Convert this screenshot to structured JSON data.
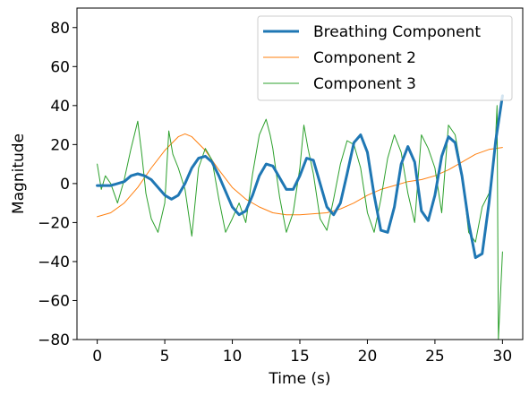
{
  "chart_data": {
    "type": "line",
    "title": "",
    "xlabel": "Time (s)",
    "ylabel": "Magnitude",
    "xlim": [
      -1.5,
      31.5
    ],
    "ylim": [
      -80,
      90
    ],
    "xticks": [
      0,
      5,
      10,
      15,
      20,
      25,
      30
    ],
    "yticks": [
      -80,
      -60,
      -40,
      -20,
      0,
      20,
      40,
      60,
      80
    ],
    "grid": false,
    "legend_position": "top-right",
    "series": [
      {
        "name": "Breathing Component",
        "color": "#1f77b4",
        "x": [
          0,
          1,
          2,
          2.5,
          3,
          3.5,
          4,
          5,
          5.5,
          6,
          6.5,
          7,
          7.5,
          8,
          8.5,
          9,
          10,
          10.5,
          11,
          11.5,
          12,
          12.5,
          13,
          13.5,
          14,
          14.5,
          15,
          15.5,
          16,
          17,
          17.5,
          18,
          18.5,
          19,
          19.5,
          20,
          20.5,
          21,
          21.5,
          22,
          22.5,
          23,
          23.5,
          24,
          24.5,
          25,
          25.5,
          26,
          26.5,
          27,
          27.5,
          28,
          28.5,
          29,
          29.5,
          30
        ],
        "y": [
          -1,
          -1,
          1,
          4,
          5,
          4,
          2,
          -6,
          -8,
          -6,
          0,
          8,
          13,
          14,
          11,
          4,
          -12,
          -16,
          -14,
          -6,
          4,
          10,
          9,
          3,
          -3,
          -3,
          4,
          13,
          12,
          -12,
          -16,
          -10,
          5,
          21,
          25,
          16,
          -6,
          -24,
          -25,
          -12,
          10,
          19,
          11,
          -14,
          -19,
          -6,
          14,
          24,
          21,
          4,
          -20,
          -38,
          -36,
          -10,
          22,
          45
        ]
      },
      {
        "name": "Component 2",
        "color": "#ff7f0e",
        "x": [
          0,
          1,
          2,
          3,
          4,
          5,
          6,
          6.5,
          7,
          8,
          9,
          10,
          11,
          12,
          13,
          14,
          15,
          16,
          17,
          18,
          19,
          20,
          21,
          22,
          23,
          24,
          25,
          26,
          27,
          28,
          29,
          30
        ],
        "y": [
          -17,
          -15,
          -10,
          -2,
          8,
          17,
          24,
          25.5,
          24,
          17,
          7,
          -2,
          -8,
          -12,
          -15,
          -16,
          -16,
          -15.5,
          -15,
          -13,
          -10,
          -6,
          -3,
          -1,
          1,
          2,
          4,
          7,
          11,
          15,
          17.5,
          18.5
        ]
      },
      {
        "name": "Component 3",
        "color": "#2ca02c",
        "x": [
          0,
          0.3,
          0.6,
          1,
          1.5,
          2,
          2.5,
          3,
          3.3,
          3.6,
          4,
          4.5,
          5,
          5.3,
          5.6,
          6,
          6.5,
          7,
          7.5,
          8,
          8.5,
          9,
          9.5,
          10,
          10.5,
          11,
          11.5,
          12,
          12.5,
          12.8,
          13,
          13.5,
          14,
          14.5,
          15,
          15.3,
          15.6,
          16,
          16.5,
          17,
          17.5,
          18,
          18.5,
          19,
          19.5,
          20,
          20.5,
          21,
          21.5,
          22,
          22.5,
          23,
          23.5,
          24,
          24.5,
          25,
          25.5,
          26,
          26.5,
          27,
          27.5,
          28,
          28.5,
          29,
          29.3,
          29.5,
          29.6,
          29.7,
          30
        ],
        "y": [
          10,
          -3,
          4,
          0,
          -10,
          2,
          18,
          32,
          15,
          -5,
          -18,
          -25,
          -10,
          27,
          15,
          8,
          -3,
          -27,
          8,
          18,
          12,
          -8,
          -25,
          -18,
          -10,
          -20,
          5,
          25,
          33,
          25,
          18,
          -7,
          -25,
          -15,
          8,
          30,
          18,
          5,
          -18,
          -24,
          -8,
          10,
          22,
          20,
          8,
          -15,
          -25,
          -8,
          13,
          25,
          16,
          -5,
          -20,
          25,
          18,
          8,
          -15,
          30,
          25,
          5,
          -25,
          -30,
          -12,
          -5,
          8,
          25,
          40,
          -80,
          -35
        ]
      }
    ]
  }
}
